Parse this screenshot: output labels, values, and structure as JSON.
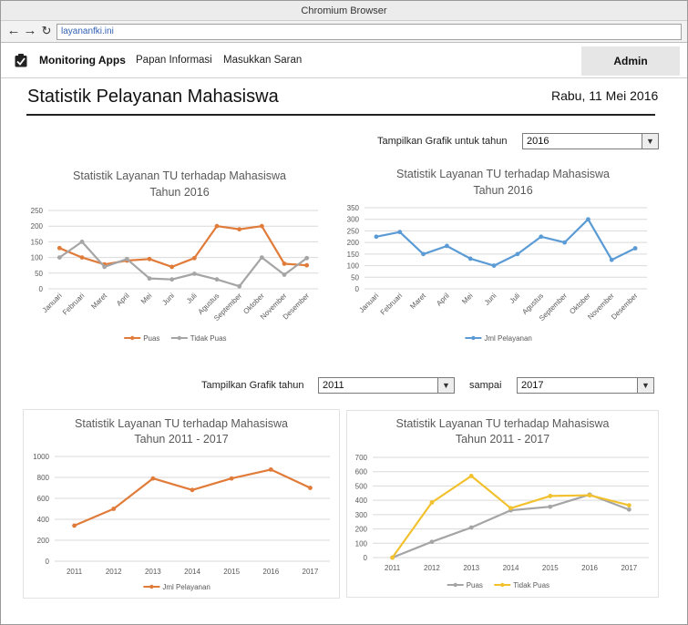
{
  "browser": {
    "title": "Chromium Browser",
    "url": "layananfki.ini",
    "back_icon": "arrow-left",
    "forward_icon": "arrow-right",
    "reload_icon": "reload"
  },
  "nav": {
    "brand": "Monitoring Apps",
    "links": [
      "Papan Informasi",
      "Masukkan Saran"
    ],
    "admin": "Admin",
    "brand_icon": "checkbox-checked"
  },
  "page": {
    "title": "Statistik Pelayanan Mahasiswa",
    "date": "Rabu, 11 Mei 2016"
  },
  "filter_year": {
    "label": "Tampilkan Grafik untuk tahun",
    "value": "2016"
  },
  "filter_range": {
    "label": "Tampilkan Grafik tahun",
    "from": "2011",
    "sep": "sampai",
    "to": "2017"
  },
  "colors": {
    "orange": "#e07b39",
    "gray": "#a5a5a5",
    "blue": "#5b9bd5",
    "yellow": "#f2c12e"
  },
  "chart_data": [
    {
      "type": "line",
      "title": [
        "Statistik Layanan TU terhadap Mahasiswa",
        "Tahun 2016"
      ],
      "categories": [
        "Januari",
        "Februari",
        "Maret",
        "April",
        "Mei",
        "Juni",
        "Juli",
        "Agustus",
        "September",
        "Oktober",
        "November",
        "Desember"
      ],
      "ylim": [
        0,
        250
      ],
      "yticks": [
        0,
        50,
        100,
        150,
        200,
        250
      ],
      "series": [
        {
          "name": "Puas",
          "color": "#e07b39",
          "values": [
            130,
            100,
            78,
            90,
            95,
            70,
            98,
            200,
            190,
            200,
            80,
            75
          ]
        },
        {
          "name": "Tidak Puas",
          "color": "#a5a5a5",
          "values": [
            100,
            150,
            70,
            95,
            33,
            30,
            48,
            30,
            8,
            100,
            45,
            98
          ]
        }
      ]
    },
    {
      "type": "line",
      "title": [
        "Statistik Layanan TU terhadap Mahasiswa",
        "Tahun 2016"
      ],
      "categories": [
        "Januari",
        "Februari",
        "Maret",
        "April",
        "Mei",
        "Juni",
        "Juli",
        "Agustus",
        "September",
        "Oktober",
        "November",
        "Desember"
      ],
      "ylim": [
        0,
        350
      ],
      "yticks": [
        0,
        50,
        100,
        150,
        200,
        250,
        300,
        350
      ],
      "series": [
        {
          "name": "Jml Pelayanan",
          "color": "#5b9bd5",
          "values": [
            225,
            245,
            150,
            185,
            130,
            100,
            150,
            225,
            200,
            300,
            125,
            175
          ]
        }
      ]
    },
    {
      "type": "line",
      "title": [
        "Statistik Layanan TU terhadap Mahasiswa",
        "Tahun 2011 - 2017"
      ],
      "categories": [
        "2011",
        "2012",
        "2013",
        "2014",
        "2015",
        "2016",
        "2017"
      ],
      "ylim": [
        0,
        1000
      ],
      "yticks": [
        0,
        200,
        400,
        600,
        800,
        1000
      ],
      "series": [
        {
          "name": "Jml Pelayanan",
          "color": "#e07b39",
          "values": [
            340,
            500,
            790,
            680,
            790,
            875,
            700
          ]
        }
      ]
    },
    {
      "type": "line",
      "title": [
        "Statistik Layanan TU terhadap Mahasiswa",
        "Tahun 2011 - 2017"
      ],
      "categories": [
        "2011",
        "2012",
        "2013",
        "2014",
        "2015",
        "2016",
        "2017"
      ],
      "ylim": [
        0,
        700
      ],
      "yticks": [
        0,
        100,
        200,
        300,
        400,
        500,
        600,
        700
      ],
      "series": [
        {
          "name": "Puas",
          "color": "#a5a5a5",
          "values": [
            0,
            110,
            210,
            330,
            355,
            440,
            335
          ]
        },
        {
          "name": "Tidak Puas",
          "color": "#f2c12e",
          "values": [
            0,
            385,
            570,
            345,
            430,
            435,
            365
          ]
        }
      ]
    }
  ]
}
